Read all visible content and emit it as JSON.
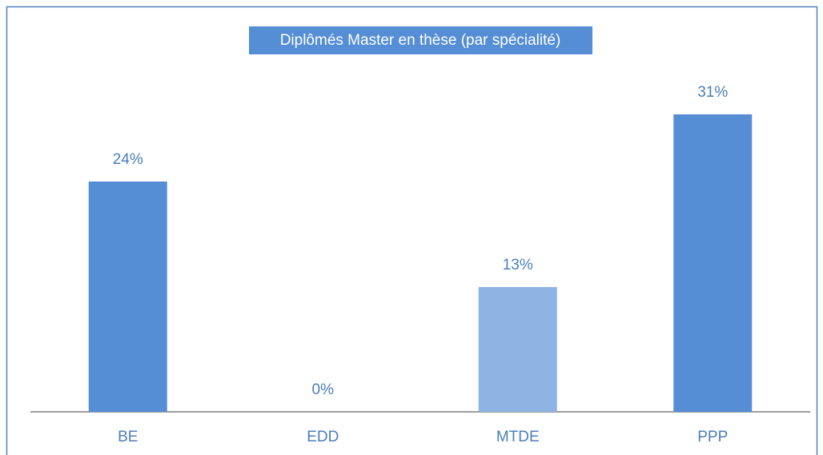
{
  "chart_data": {
    "type": "bar",
    "title": "Diplômés Master en thèse (par spécialité)",
    "categories": [
      "BE",
      "EDD",
      "MTDE",
      "PPP"
    ],
    "values": [
      24,
      0,
      13,
      31
    ],
    "value_labels": [
      "24%",
      "0%",
      "13%",
      "31%"
    ],
    "colors": [
      "#558ed5",
      "#558ed5",
      "#8eb4e3",
      "#558ed5"
    ]
  }
}
